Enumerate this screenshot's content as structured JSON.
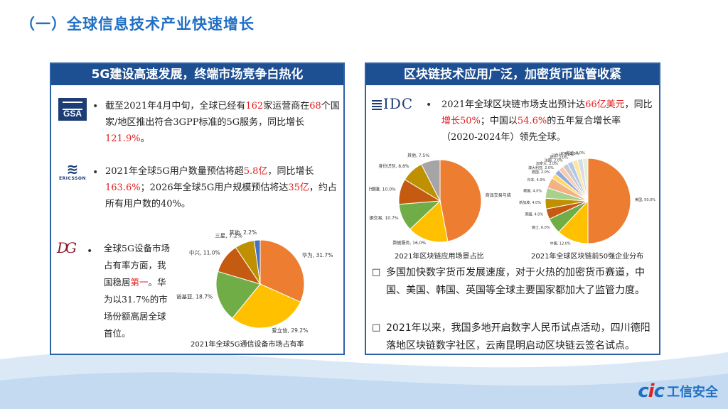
{
  "page_title": "（一）全球信息技术产业快速增长",
  "left_panel": {
    "header": "5G建设高速发展，终端市场竞争白热化",
    "gsa_logo": "GSA",
    "ericsson_logo": "ERICSSON",
    "dg_logo": "DG",
    "bullet": "•",
    "p1": {
      "a": "截至2021年4月中旬，全球已经有",
      "n1": "162",
      "b": "家运营商在",
      "n2": "68",
      "c": "个国家/地区推出符合3GPP标准的5G服务，同比增长",
      "n3": "121.9%",
      "d": "。"
    },
    "p2": {
      "a": "2021年全球5G用户数量预估将超",
      "n1": "5.8亿",
      "b": "，同比增长",
      "n2": "163.6%",
      "c": "；2026年全球5G用户规模预估将达",
      "n3": "35亿",
      "d": "，约占所有用户数的40%。"
    },
    "p3": {
      "a": "全球5G设备市场占有率方面，我国稳居",
      "n1": "第一",
      "b": "。华为以31.7%的市场份额高居全球首位。"
    },
    "chart_caption": "2021年全球5G通信设备市场占有率"
  },
  "right_panel": {
    "header": "区块链技术应用广泛，加密货币监管收紧",
    "idc_logo": "IDC",
    "bullet": "•",
    "p1": {
      "a": "2021年全球区块链市场支出预计达",
      "n1": "66亿美元",
      "b": "，同比",
      "n2": "增长50%",
      "c": "；中国以",
      "n3": "54.6%",
      "d": "的五年复合增长率（2020-2024年）领先全球。"
    },
    "chart1_caption": "2021年区块链应用场景占比",
    "chart2_caption": "2021年全球区块链前50强企业分布",
    "sq_bullet": "□",
    "p2": "多国加快数字货币发展速度，对于火热的加密货币赛道，中国、美国、韩国、英国等全球主要国家都加大了监管力度。",
    "p3": "2021年以来，我国多地开启数字人民币试点活动，四川德阳落地区块链数字社区，云南昆明启动区块链云签名试点。"
  },
  "brand": {
    "cic_c1": "c",
    "cic_i": "i",
    "cic_c2": "c",
    "name": "工信安全"
  },
  "chart_data": [
    {
      "type": "pie",
      "title": "2021年全球5G通信设备市场占有率",
      "labels": [
        "华为",
        "爱立信",
        "诺基亚",
        "中兴",
        "三星",
        "其他"
      ],
      "values": [
        31.7,
        29.2,
        18.7,
        11.0,
        7.2,
        2.2
      ],
      "display": [
        "华为, 31.7%",
        "爱立信, 29.2%",
        "诺基亚, 18.7%",
        "中兴, 11.0%",
        "三星, 7.2%",
        "其他, 2.2%"
      ],
      "colors": [
        "#ed7d31",
        "#ffc000",
        "#70ad47",
        "#c55a11",
        "#bf9000",
        "#4472c4"
      ]
    },
    {
      "type": "pie",
      "title": "2021年区块链应用场景占比",
      "labels": [
        "商品交易与结算",
        "数据服务",
        "交易确权与数据交易",
        "医疗健康",
        "身份识别",
        "其他"
      ],
      "values": [
        47.0,
        16.0,
        10.7,
        10.0,
        8.8,
        7.5
      ],
      "display": [
        "商品交易与结算, 47.0%",
        "数据服务, 16.0%",
        "交易确权与数据交易, 10.7%",
        "医疗健康, 10.0%",
        "身份识别, 8.8%",
        "其他, 7.5%"
      ],
      "colors": [
        "#ed7d31",
        "#ffc000",
        "#70ad47",
        "#c55a11",
        "#bf9000",
        "#a5a5a5"
      ]
    },
    {
      "type": "pie",
      "title": "2021年全球区块链前50强企业分布",
      "labels": [
        "美国",
        "中国",
        "瑞士",
        "英国",
        "新加坡",
        "韩国",
        "日本",
        "德国",
        "澳大利亚",
        "加拿大",
        "法国",
        "荷兰",
        "以色列",
        "印度",
        "其他"
      ],
      "values": [
        50.0,
        12.0,
        6.0,
        4.0,
        4.0,
        4.0,
        4.0,
        2.0,
        2.0,
        2.0,
        2.0,
        2.0,
        2.0,
        2.0,
        2.0
      ],
      "display": [
        "美国, 50.0%",
        "中国, 12.0%",
        "瑞士, 6.0%",
        "英国, 4.0%",
        "新加坡, 4.0%",
        "韩国, 4.0%",
        "日本, 4.0%",
        "德国, 2.0%",
        "澳大利亚, 2.0%",
        "加拿大, 2.0%",
        "法国, 2.0%",
        "荷兰, 2.0%",
        "以色列, 2.0%",
        "印度, 2.0%",
        "其他, 2.0%"
      ],
      "colors": [
        "#ed7d31",
        "#ffc000",
        "#70ad47",
        "#c55a11",
        "#bf9000",
        "#a9d18e",
        "#f4b183",
        "#ffd966",
        "#8faadc",
        "#f8cbad",
        "#c9c9c9",
        "#b4c7e7",
        "#ffe699",
        "#d6dce5",
        "#e2f0d9"
      ]
    }
  ]
}
